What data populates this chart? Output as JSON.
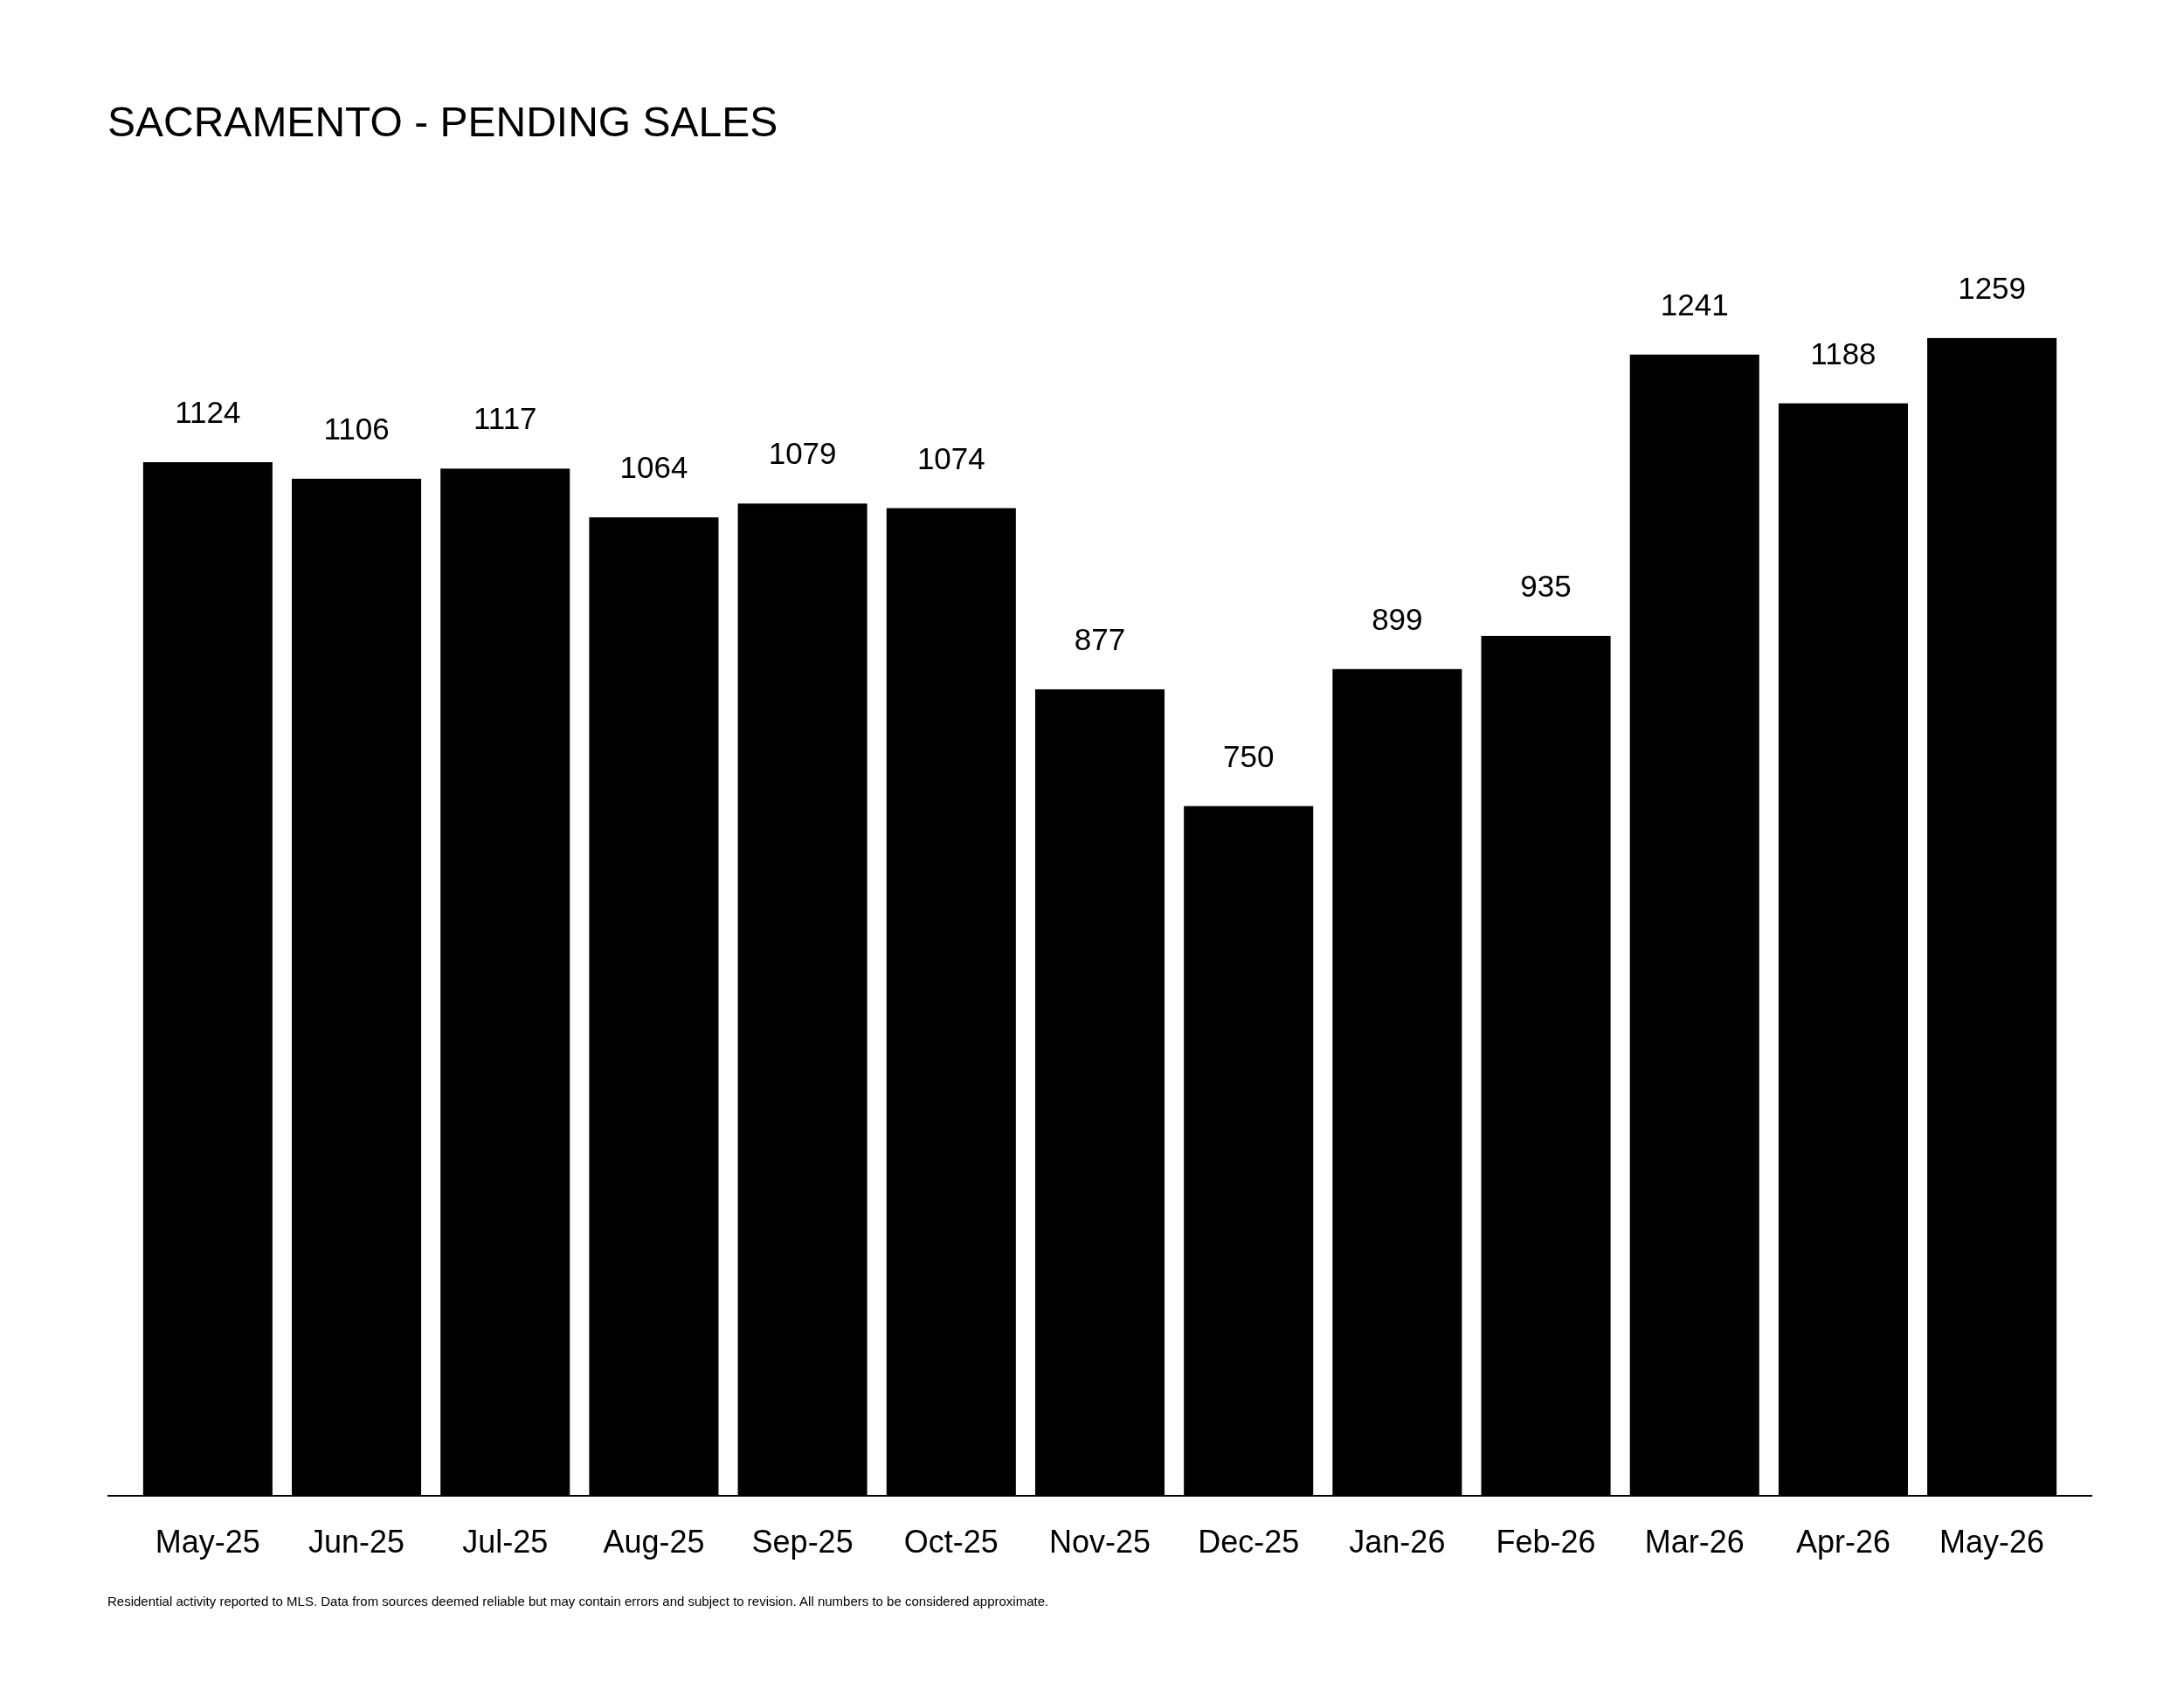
{
  "chart_data": {
    "type": "bar",
    "title": "SACRAMENTO - PENDING SALES",
    "categories": [
      "May-25",
      "Jun-25",
      "Jul-25",
      "Aug-25",
      "Sep-25",
      "Oct-25",
      "Nov-25",
      "Dec-25",
      "Jan-26",
      "Feb-26",
      "Mar-26",
      "Apr-26",
      "May-26"
    ],
    "values": [
      1124,
      1106,
      1117,
      1064,
      1079,
      1074,
      877,
      750,
      899,
      935,
      1241,
      1188,
      1259
    ],
    "color": "#000000",
    "data_labels": true,
    "annotations": [
      "Residential activity reported to MLS. Data from sources deemed reliable but may contain errors and subject to revision. All numbers to be considered approximate."
    ]
  }
}
